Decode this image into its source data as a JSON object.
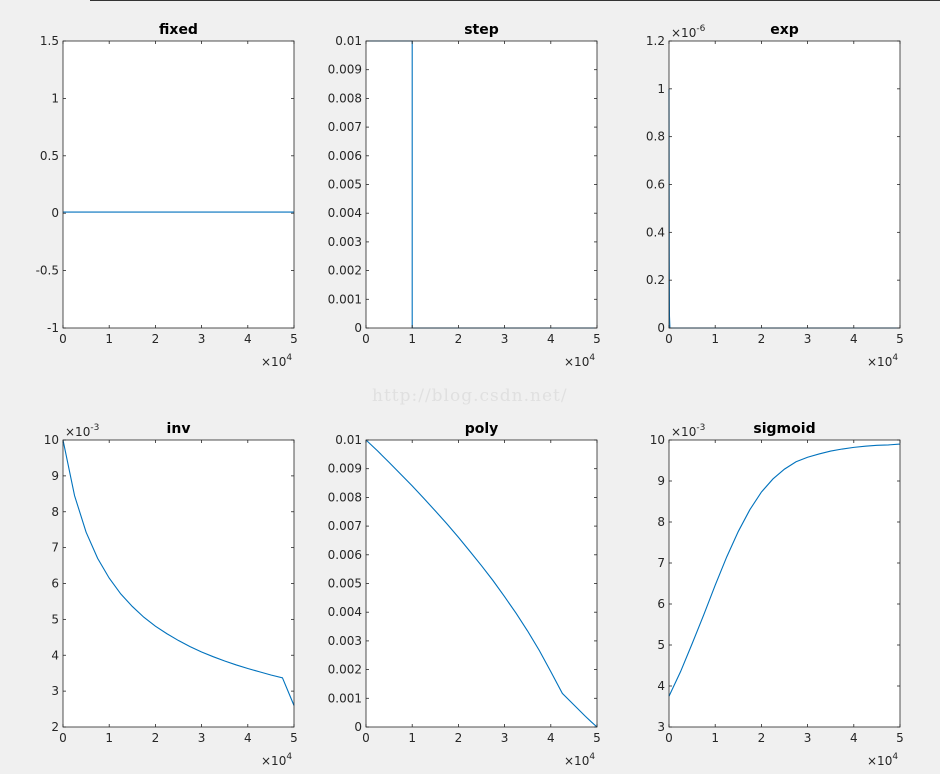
{
  "watermark": "http://blog.csdn.net/",
  "colors": {
    "line": "#0072bd",
    "axes": "#262626",
    "figure_bg": "#f0f0f0",
    "plot_bg": "#ffffff"
  },
  "chart_data": [
    {
      "type": "line",
      "title": "fixed",
      "xlim": [
        0,
        50000
      ],
      "ylim": [
        -1,
        1.5
      ],
      "x_ticks": [
        0,
        10000,
        20000,
        30000,
        40000,
        50000
      ],
      "x_tick_labels": [
        "0",
        "1",
        "2",
        "3",
        "4",
        "5"
      ],
      "x_exponent": "4",
      "y_ticks": [
        -1,
        -0.5,
        0,
        0.5,
        1,
        1.5
      ],
      "y_tick_labels": [
        "-1",
        "-0.5",
        "0",
        "0.5",
        "1",
        "1.5"
      ],
      "y_exponent": "",
      "x": [
        0,
        50000
      ],
      "y": [
        0.01,
        0.01
      ]
    },
    {
      "type": "line",
      "title": "step",
      "xlim": [
        0,
        50000
      ],
      "ylim": [
        0,
        0.01
      ],
      "x_ticks": [
        0,
        10000,
        20000,
        30000,
        40000,
        50000
      ],
      "x_tick_labels": [
        "0",
        "1",
        "2",
        "3",
        "4",
        "5"
      ],
      "x_exponent": "4",
      "y_ticks": [
        0,
        0.001,
        0.002,
        0.003,
        0.004,
        0.005,
        0.006,
        0.007,
        0.008,
        0.009,
        0.01
      ],
      "y_tick_labels": [
        "0",
        "0.001",
        "0.002",
        "0.003",
        "0.004",
        "0.005",
        "0.006",
        "0.007",
        "0.008",
        "0.009",
        "0.01"
      ],
      "y_exponent": "",
      "x": [
        0,
        10000,
        10000,
        50000
      ],
      "y": [
        0.01,
        0.01,
        0,
        0
      ]
    },
    {
      "type": "line",
      "title": "exp",
      "xlim": [
        0,
        50000
      ],
      "ylim": [
        0,
        1.2e-06
      ],
      "x_ticks": [
        0,
        10000,
        20000,
        30000,
        40000,
        50000
      ],
      "x_tick_labels": [
        "0",
        "1",
        "2",
        "3",
        "4",
        "5"
      ],
      "x_exponent": "4",
      "y_ticks": [
        0,
        2e-07,
        4e-07,
        6e-07,
        8e-07,
        1e-06,
        1.2e-06
      ],
      "y_tick_labels": [
        "0",
        "0.2",
        "0.4",
        "0.6",
        "0.8",
        "1",
        "1.2"
      ],
      "y_exponent": "-6",
      "x": [
        0,
        50,
        100,
        200,
        50000
      ],
      "y": [
        1e-06,
        3e-07,
        5e-08,
        0,
        0
      ]
    },
    {
      "type": "line",
      "title": "inv",
      "xlim": [
        0,
        50000
      ],
      "ylim": [
        0.002,
        0.01
      ],
      "x_ticks": [
        0,
        10000,
        20000,
        30000,
        40000,
        50000
      ],
      "x_tick_labels": [
        "0",
        "1",
        "2",
        "3",
        "4",
        "5"
      ],
      "x_exponent": "4",
      "y_ticks": [
        0.002,
        0.003,
        0.004,
        0.005,
        0.006,
        0.007,
        0.008,
        0.009,
        0.01
      ],
      "y_tick_labels": [
        "2",
        "3",
        "4",
        "5",
        "6",
        "7",
        "8",
        "9",
        "10"
      ],
      "y_exponent": "-3",
      "x": [
        0,
        2500,
        5000,
        7500,
        10000,
        12500,
        15000,
        17500,
        20000,
        22500,
        25000,
        27500,
        30000,
        32500,
        35000,
        37500,
        40000,
        42500,
        45000,
        47500,
        50000
      ],
      "y": [
        0.01,
        0.00845,
        0.00743,
        0.0067,
        0.00615,
        0.00571,
        0.00536,
        0.00506,
        0.00481,
        0.0046,
        0.00441,
        0.00424,
        0.00409,
        0.00396,
        0.00384,
        0.00373,
        0.00363,
        0.00354,
        0.00345,
        0.00337,
        0.0026
      ]
    },
    {
      "type": "line",
      "title": "poly",
      "xlim": [
        0,
        50000
      ],
      "ylim": [
        0,
        0.01
      ],
      "x_ticks": [
        0,
        10000,
        20000,
        30000,
        40000,
        50000
      ],
      "x_tick_labels": [
        "0",
        "1",
        "2",
        "3",
        "4",
        "5"
      ],
      "x_exponent": "4",
      "y_ticks": [
        0,
        0.001,
        0.002,
        0.003,
        0.004,
        0.005,
        0.006,
        0.007,
        0.008,
        0.009,
        0.01
      ],
      "y_tick_labels": [
        "0",
        "0.001",
        "0.002",
        "0.003",
        "0.004",
        "0.005",
        "0.006",
        "0.007",
        "0.008",
        "0.009",
        "0.01"
      ],
      "y_exponent": "",
      "x": [
        0,
        2500,
        5000,
        7500,
        10000,
        12500,
        15000,
        17500,
        20000,
        22500,
        25000,
        27500,
        30000,
        32500,
        35000,
        37500,
        40000,
        42500,
        45000,
        47500,
        48750,
        50000
      ],
      "y": [
        0.01,
        0.00962,
        0.00922,
        0.00881,
        0.0084,
        0.00797,
        0.00753,
        0.00708,
        0.00661,
        0.00612,
        0.00562,
        0.0051,
        0.00454,
        0.00396,
        0.00334,
        0.00267,
        0.00193,
        0.00117,
        0.00077,
        0.00037,
        0.00018,
        0
      ]
    },
    {
      "type": "line",
      "title": "sigmoid",
      "xlim": [
        0,
        50000
      ],
      "ylim": [
        0.003,
        0.01
      ],
      "x_ticks": [
        0,
        10000,
        20000,
        30000,
        40000,
        50000
      ],
      "x_tick_labels": [
        "0",
        "1",
        "2",
        "3",
        "4",
        "5"
      ],
      "x_exponent": "4",
      "y_ticks": [
        0.003,
        0.004,
        0.005,
        0.006,
        0.007,
        0.008,
        0.009,
        0.01
      ],
      "y_tick_labels": [
        "3",
        "4",
        "5",
        "6",
        "7",
        "8",
        "9",
        "10"
      ],
      "y_exponent": "-3",
      "x": [
        0,
        2500,
        5000,
        7500,
        10000,
        12500,
        15000,
        17500,
        20000,
        22500,
        25000,
        27500,
        30000,
        32500,
        35000,
        37500,
        40000,
        42500,
        45000,
        47500,
        50000
      ],
      "y": [
        0.00375,
        0.00435,
        0.00503,
        0.00573,
        0.00646,
        0.00715,
        0.00777,
        0.0083,
        0.00873,
        0.00905,
        0.00929,
        0.00947,
        0.00958,
        0.00966,
        0.00973,
        0.00978,
        0.00982,
        0.00985,
        0.00987,
        0.00988,
        0.0099
      ]
    }
  ]
}
